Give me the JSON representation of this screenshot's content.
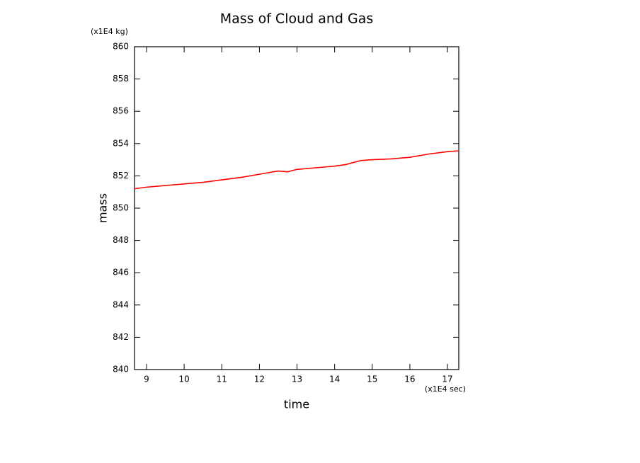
{
  "chart_data": {
    "type": "line",
    "title": "Mass of Cloud and Gas",
    "xlabel": "time",
    "ylabel": "mass",
    "xunit": "(x1E4 sec)",
    "yunit": "(x1E4 kg)",
    "x": [
      8.68,
      9.0,
      9.5,
      10.0,
      10.5,
      11.0,
      11.5,
      12.0,
      12.5,
      12.75,
      13.0,
      13.5,
      14.0,
      14.3,
      14.7,
      15.0,
      15.5,
      16.0,
      16.5,
      17.0,
      17.3
    ],
    "series": [
      {
        "name": "mass",
        "color": "#ff0000",
        "values": [
          851.2,
          851.3,
          851.4,
          851.5,
          851.6,
          851.75,
          851.9,
          852.1,
          852.3,
          852.25,
          852.4,
          852.5,
          852.6,
          852.7,
          852.95,
          853.0,
          853.05,
          853.15,
          853.35,
          853.5,
          853.55
        ]
      }
    ],
    "xlim": [
      8.68,
      17.3
    ],
    "xticks": [
      9,
      10,
      11,
      12,
      13,
      14,
      15,
      16,
      17
    ],
    "ylim": [
      840,
      860
    ],
    "yticks": [
      840,
      842,
      844,
      846,
      848,
      850,
      852,
      854,
      856,
      858,
      860
    ],
    "grid": false
  }
}
